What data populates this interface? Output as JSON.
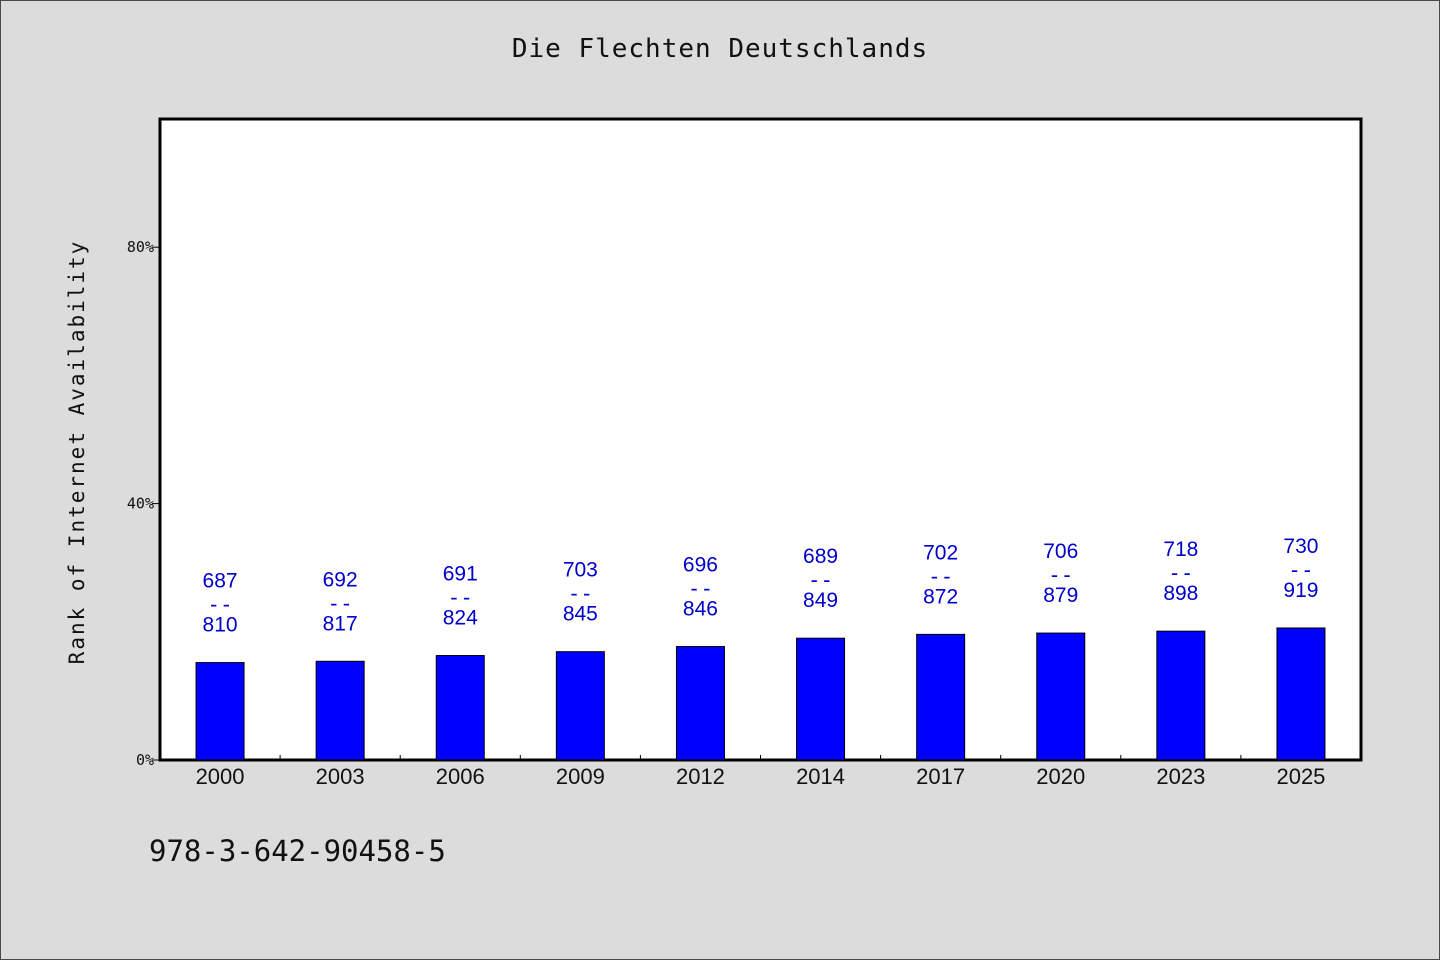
{
  "chart_data": {
    "type": "bar",
    "title": "Die Flechten Deutschlands",
    "xlabel": "",
    "ylabel": "Rank of Internet Availability",
    "footer_text": "978-3-642-90458-5",
    "categories": [
      "2000",
      "2003",
      "2006",
      "2009",
      "2012",
      "2014",
      "2017",
      "2020",
      "2023",
      "2025"
    ],
    "values": [
      15.2,
      15.4,
      16.3,
      16.9,
      17.7,
      19.0,
      19.6,
      19.8,
      20.1,
      20.6
    ],
    "annotations": [
      {
        "top": "687",
        "sep": "--",
        "bottom": "810"
      },
      {
        "top": "692",
        "sep": "--",
        "bottom": "817"
      },
      {
        "top": "691",
        "sep": "--",
        "bottom": "824"
      },
      {
        "top": "703",
        "sep": "--",
        "bottom": "845"
      },
      {
        "top": "696",
        "sep": "--",
        "bottom": "846"
      },
      {
        "top": "689",
        "sep": "--",
        "bottom": "849"
      },
      {
        "top": "702",
        "sep": "--",
        "bottom": "872"
      },
      {
        "top": "706",
        "sep": "--",
        "bottom": "879"
      },
      {
        "top": "718",
        "sep": "--",
        "bottom": "898"
      },
      {
        "top": "730",
        "sep": "--",
        "bottom": "919"
      }
    ],
    "yticks": [
      0,
      40,
      80
    ],
    "ytick_labels": [
      "0%",
      "40%",
      "80%"
    ],
    "ylim": [
      0,
      100
    ],
    "grid": false,
    "colors": {
      "bar": "#0000ff",
      "annotation": "#0000cc",
      "background": "#dcdcdc",
      "plot_bg": "#ffffff"
    }
  }
}
